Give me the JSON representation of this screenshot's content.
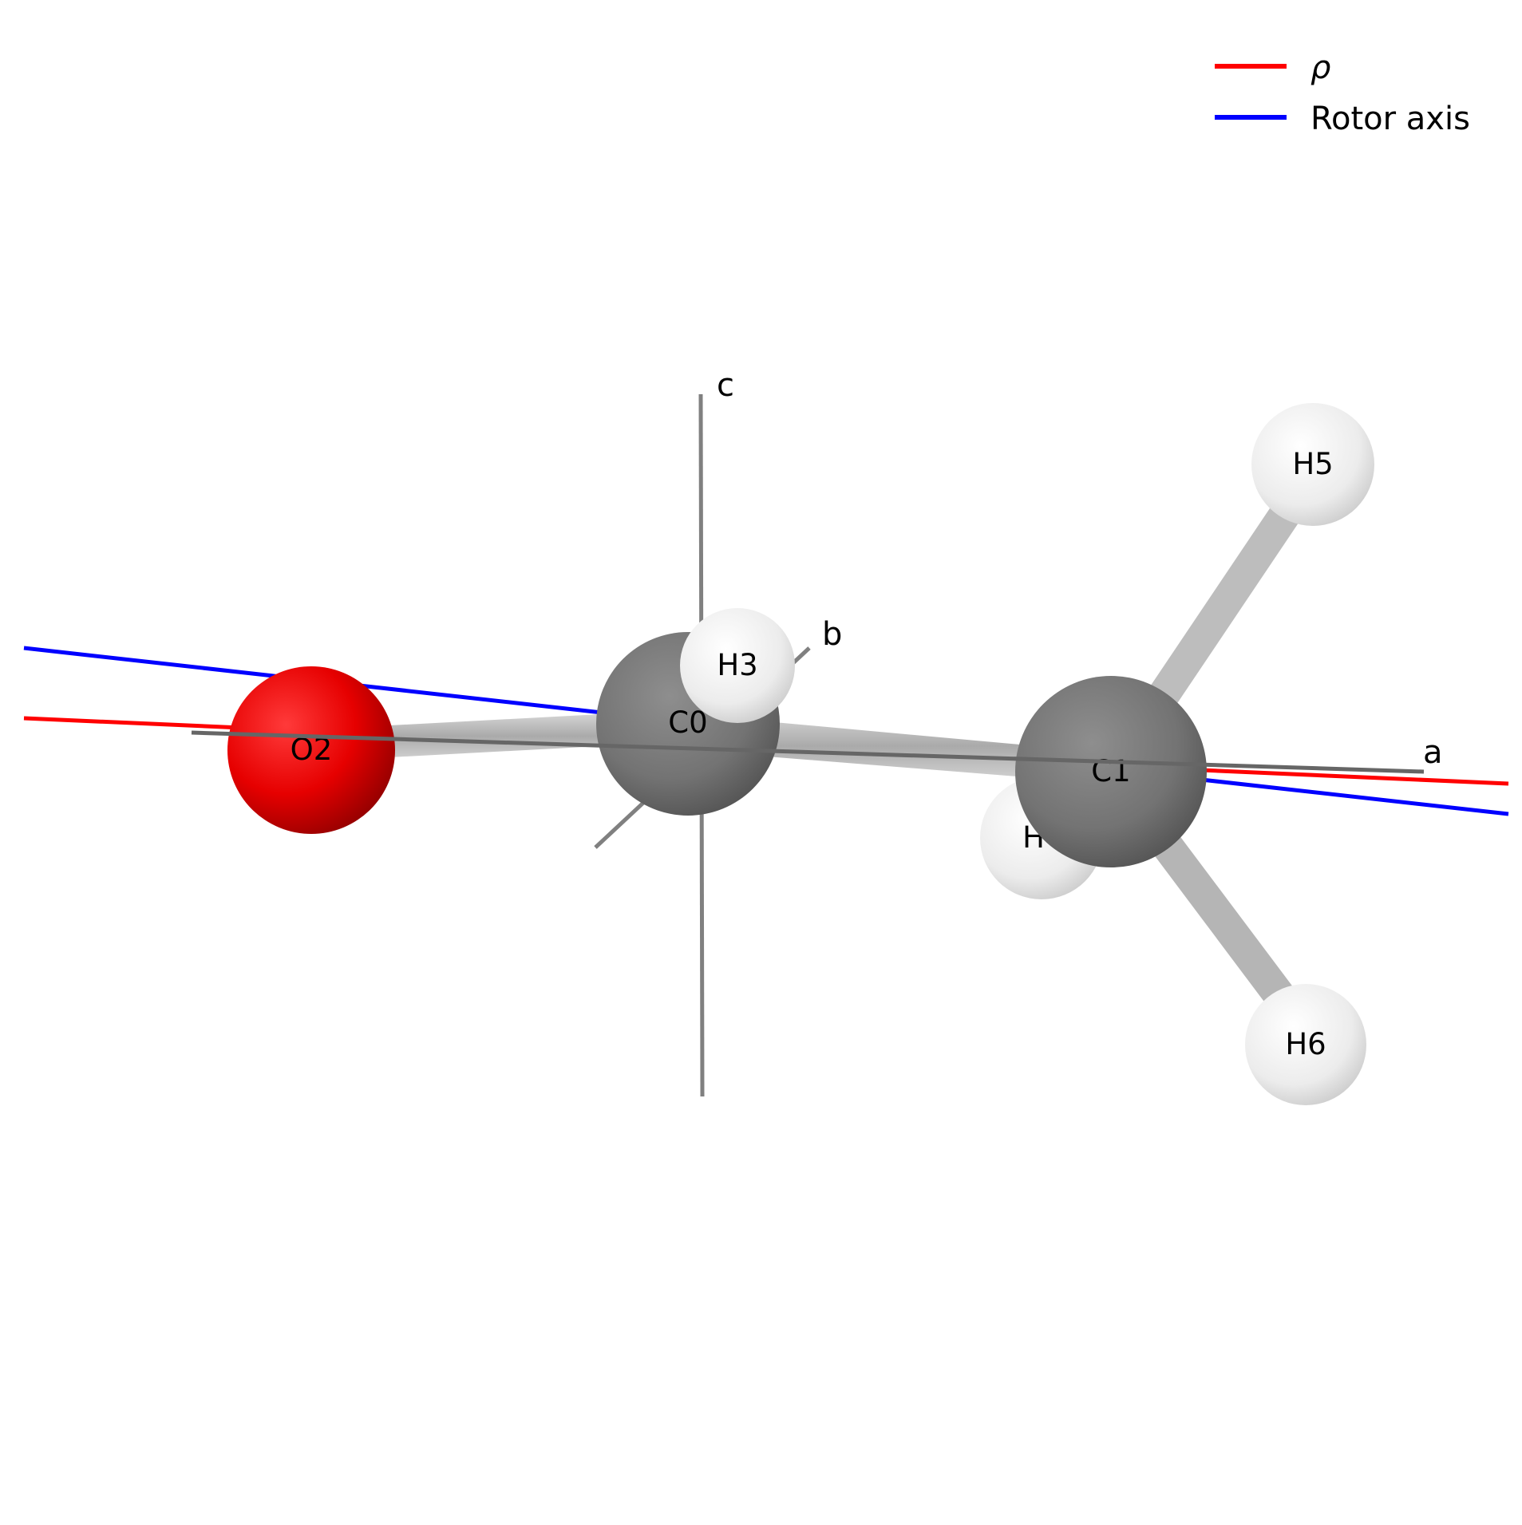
{
  "legend": {
    "items": [
      {
        "label": "ρ",
        "color": "#ff0000"
      },
      {
        "label": "Rotor axis",
        "color": "#0000ff"
      }
    ]
  },
  "axes": {
    "a": "a",
    "b": "b",
    "c": "c"
  },
  "atoms": {
    "O2": {
      "label": "O2",
      "element": "O"
    },
    "C0": {
      "label": "C0",
      "element": "C"
    },
    "C1": {
      "label": "C1",
      "element": "C"
    },
    "H3": {
      "label": "H3",
      "element": "H"
    },
    "H4": {
      "label": "H",
      "element": "H"
    },
    "H5": {
      "label": "H5",
      "element": "H"
    },
    "H6": {
      "label": "H6",
      "element": "H"
    }
  },
  "colors": {
    "oxygen": "#ff0000",
    "carbon": "#7a7a7a",
    "hydrogen": "#f2f2f2",
    "bond": "#b8b8b8",
    "principal_axis": "#808080",
    "rho": "#ff0000",
    "rotor_axis": "#0000ff"
  }
}
